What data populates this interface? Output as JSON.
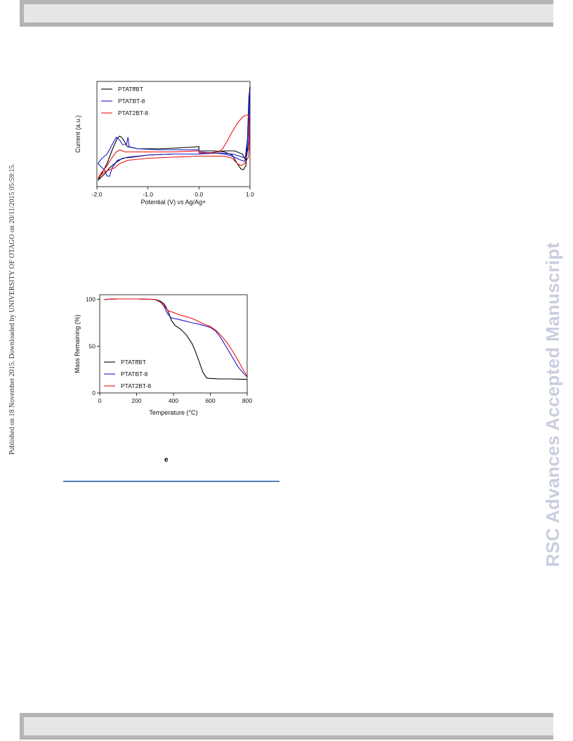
{
  "header": {},
  "side_stamp": "Published on 18 November 2015. Downloaded by UNIVERSITY OF OTAGO on 20/11/2015 05:59:15.",
  "watermark": "RSC Advances Accepted Manuscript",
  "caption_label": "e",
  "chart_data": [
    {
      "type": "line",
      "xlabel_prefix": "Potential (V) ",
      "xlabel_italic": "vs",
      "xlabel_suffix": " Ag/Ag+",
      "ylabel": "Current (a.u.)",
      "xlim": [
        -2.0,
        1.0
      ],
      "ylim": [
        0,
        1
      ],
      "xticks": [
        -2.0,
        -1.0,
        0.0,
        1.0
      ],
      "xtick_labels": [
        "-2.0",
        "-1.0",
        "0.0",
        "1.0"
      ],
      "yticks_shown": false,
      "legend": "top-left",
      "series": [
        {
          "name": "PTATffBT",
          "color": "#000000",
          "points": [
            [
              -1.98,
              0.06
            ],
            [
              -1.9,
              0.13
            ],
            [
              -1.8,
              0.22
            ],
            [
              -1.7,
              0.35
            ],
            [
              -1.6,
              0.46
            ],
            [
              -1.55,
              0.48
            ],
            [
              -1.5,
              0.46
            ],
            [
              -1.4,
              0.38
            ],
            [
              -1.2,
              0.36
            ],
            [
              -0.8,
              0.36
            ],
            [
              -0.3,
              0.37
            ],
            [
              0.0,
              0.38
            ],
            [
              0.0,
              0.34
            ],
            [
              0.3,
              0.34
            ],
            [
              0.5,
              0.33
            ],
            [
              0.65,
              0.3
            ],
            [
              0.75,
              0.22
            ],
            [
              0.82,
              0.17
            ],
            [
              0.87,
              0.16
            ],
            [
              0.92,
              0.2
            ],
            [
              0.95,
              0.45
            ],
            [
              0.98,
              0.85
            ],
            [
              1.0,
              0.95
            ],
            [
              0.99,
              0.6
            ],
            [
              0.97,
              0.4
            ],
            [
              0.92,
              0.25
            ],
            [
              0.85,
              0.31
            ],
            [
              0.7,
              0.34
            ],
            [
              0.5,
              0.34
            ],
            [
              0.2,
              0.32
            ],
            [
              0.0,
              0.31
            ],
            [
              -0.5,
              0.31
            ],
            [
              -1.0,
              0.3
            ],
            [
              -1.3,
              0.28
            ],
            [
              -1.5,
              0.27
            ],
            [
              -1.65,
              0.22
            ],
            [
              -1.75,
              0.18
            ],
            [
              -1.85,
              0.12
            ],
            [
              -1.98,
              0.06
            ]
          ]
        },
        {
          "name": "PTATBT-8",
          "color": "#1a1acc",
          "points": [
            [
              -1.98,
              0.22
            ],
            [
              -1.9,
              0.27
            ],
            [
              -1.8,
              0.31
            ],
            [
              -1.7,
              0.4
            ],
            [
              -1.62,
              0.47
            ],
            [
              -1.55,
              0.44
            ],
            [
              -1.5,
              0.4
            ],
            [
              -1.42,
              0.4
            ],
            [
              -1.39,
              0.47
            ],
            [
              -1.37,
              0.38
            ],
            [
              -1.2,
              0.36
            ],
            [
              -0.8,
              0.35
            ],
            [
              -0.3,
              0.35
            ],
            [
              0.0,
              0.35
            ],
            [
              0.0,
              0.33
            ],
            [
              0.3,
              0.32
            ],
            [
              0.5,
              0.31
            ],
            [
              0.65,
              0.29
            ],
            [
              0.78,
              0.26
            ],
            [
              0.9,
              0.24
            ],
            [
              0.96,
              0.5
            ],
            [
              0.99,
              0.85
            ],
            [
              1.0,
              0.92
            ],
            [
              0.99,
              0.6
            ],
            [
              0.96,
              0.35
            ],
            [
              0.9,
              0.27
            ],
            [
              0.8,
              0.29
            ],
            [
              0.65,
              0.31
            ],
            [
              0.4,
              0.32
            ],
            [
              0.0,
              0.31
            ],
            [
              -0.5,
              0.31
            ],
            [
              -1.0,
              0.3
            ],
            [
              -1.4,
              0.28
            ],
            [
              -1.6,
              0.25
            ],
            [
              -1.7,
              0.18
            ],
            [
              -1.75,
              0.1
            ],
            [
              -1.8,
              0.1
            ],
            [
              -1.85,
              0.16
            ],
            [
              -1.9,
              0.18
            ],
            [
              -1.98,
              0.22
            ]
          ]
        },
        {
          "name": "PTAT2BT-8",
          "color": "#ee1111",
          "points": [
            [
              -1.98,
              0.08
            ],
            [
              -1.9,
              0.14
            ],
            [
              -1.8,
              0.2
            ],
            [
              -1.7,
              0.28
            ],
            [
              -1.62,
              0.33
            ],
            [
              -1.55,
              0.35
            ],
            [
              -1.45,
              0.33
            ],
            [
              -1.3,
              0.33
            ],
            [
              -1.0,
              0.33
            ],
            [
              -0.5,
              0.33
            ],
            [
              0.0,
              0.34
            ],
            [
              0.0,
              0.32
            ],
            [
              0.3,
              0.32
            ],
            [
              0.45,
              0.35
            ],
            [
              0.55,
              0.43
            ],
            [
              0.65,
              0.52
            ],
            [
              0.75,
              0.6
            ],
            [
              0.85,
              0.66
            ],
            [
              0.92,
              0.68
            ],
            [
              0.96,
              0.68
            ],
            [
              0.98,
              0.65
            ],
            [
              0.99,
              0.4
            ],
            [
              0.97,
              0.28
            ],
            [
              0.9,
              0.22
            ],
            [
              0.82,
              0.2
            ],
            [
              0.75,
              0.22
            ],
            [
              0.65,
              0.27
            ],
            [
              0.5,
              0.29
            ],
            [
              0.3,
              0.29
            ],
            [
              0.0,
              0.29
            ],
            [
              -0.5,
              0.28
            ],
            [
              -1.0,
              0.27
            ],
            [
              -1.4,
              0.25
            ],
            [
              -1.55,
              0.22
            ],
            [
              -1.65,
              0.18
            ],
            [
              -1.75,
              0.16
            ],
            [
              -1.85,
              0.14
            ],
            [
              -1.98,
              0.08
            ]
          ]
        }
      ]
    },
    {
      "type": "line",
      "xlabel_prefix": "Temperature (",
      "xlabel_unit": "°C",
      "xlabel_suffix": ")",
      "ylabel": "Mass Remaining (%)",
      "xlim": [
        0,
        800
      ],
      "ylim": [
        0,
        105
      ],
      "xticks": [
        0,
        200,
        400,
        600,
        800
      ],
      "xtick_labels": [
        "0",
        "200",
        "400",
        "600",
        "800"
      ],
      "yticks": [
        0,
        50,
        100
      ],
      "ytick_labels": [
        "0",
        "50",
        "100"
      ],
      "legend": "bottom-left",
      "series": [
        {
          "name": "PTATffBT",
          "color": "#000000",
          "points": [
            [
              25,
              100
            ],
            [
              100,
              100.5
            ],
            [
              200,
              100.5
            ],
            [
              300,
              100
            ],
            [
              330,
              98
            ],
            [
              350,
              95
            ],
            [
              370,
              88
            ],
            [
              390,
              77
            ],
            [
              410,
              72
            ],
            [
              440,
              68
            ],
            [
              470,
              62
            ],
            [
              500,
              53
            ],
            [
              520,
              44
            ],
            [
              540,
              33
            ],
            [
              560,
              22
            ],
            [
              580,
              16
            ],
            [
              600,
              15.5
            ],
            [
              650,
              15
            ],
            [
              700,
              15
            ],
            [
              750,
              14.8
            ],
            [
              800,
              14.5
            ]
          ]
        },
        {
          "name": "PTATBT-8",
          "color": "#1a1acc",
          "points": [
            [
              25,
              100
            ],
            [
              100,
              100.5
            ],
            [
              200,
              100.5
            ],
            [
              300,
              100
            ],
            [
              330,
              97
            ],
            [
              350,
              92
            ],
            [
              370,
              84
            ],
            [
              390,
              80
            ],
            [
              420,
              79
            ],
            [
              460,
              77
            ],
            [
              500,
              75
            ],
            [
              550,
              73
            ],
            [
              600,
              70
            ],
            [
              630,
              66
            ],
            [
              660,
              58
            ],
            [
              690,
              48
            ],
            [
              720,
              38
            ],
            [
              750,
              28
            ],
            [
              780,
              21
            ],
            [
              800,
              17
            ]
          ]
        },
        {
          "name": "PTAT2BT-8",
          "color": "#ee1111",
          "points": [
            [
              25,
              100
            ],
            [
              100,
              100.5
            ],
            [
              200,
              100.5
            ],
            [
              300,
              100
            ],
            [
              330,
              97
            ],
            [
              350,
              93
            ],
            [
              370,
              88
            ],
            [
              400,
              86
            ],
            [
              440,
              83
            ],
            [
              480,
              81
            ],
            [
              520,
              78
            ],
            [
              560,
              74
            ],
            [
              600,
              71
            ],
            [
              630,
              67
            ],
            [
              660,
              61
            ],
            [
              690,
              54
            ],
            [
              720,
              45
            ],
            [
              750,
              35
            ],
            [
              780,
              24
            ],
            [
              800,
              18
            ]
          ]
        }
      ]
    }
  ]
}
